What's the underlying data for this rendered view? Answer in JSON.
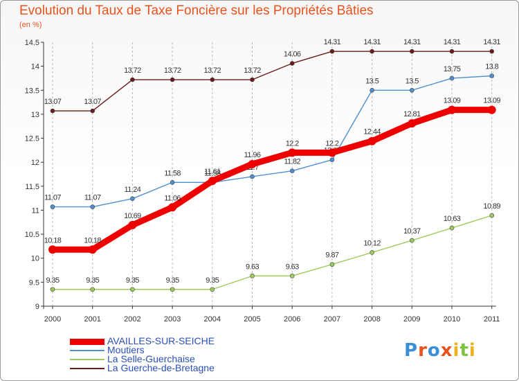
{
  "title": "Evolution du Taux de Taxe Foncière sur les Propriétés Bâties",
  "unit_label": "(en %)",
  "logo": "Proxiti",
  "chart_data": {
    "type": "line",
    "x": [
      "2000",
      "2001",
      "2002",
      "2003",
      "2004",
      "2005",
      "2006",
      "2007",
      "2008",
      "2009",
      "2010",
      "2011"
    ],
    "ylim": [
      9,
      14.5
    ],
    "yticks": [
      "9",
      "9.5",
      "10",
      "10.5",
      "11",
      "11.5",
      "12",
      "12.5",
      "13",
      "13.5",
      "14",
      "14.5"
    ],
    "grid": "vertical dashed",
    "legend_position": "bottom-left",
    "series": [
      {
        "name": "La Guerche-de-Bretagne",
        "color": "#6b1a1a",
        "width": 1.4,
        "marker": 3,
        "values": [
          13.07,
          13.07,
          13.72,
          13.72,
          13.72,
          13.72,
          14.06,
          14.31,
          14.31,
          14.31,
          14.31,
          14.31
        ],
        "labels": [
          "13.07",
          "13.07",
          "13.72",
          "13.72",
          "13.72",
          "13.72",
          "14.06",
          "14.31",
          "14.31",
          "14.31",
          "14.31",
          "14.31"
        ]
      },
      {
        "name": "Moutiers",
        "color": "#4f8fcf",
        "width": 1.4,
        "marker": 3,
        "values": [
          11.07,
          11.07,
          11.24,
          11.58,
          11.58,
          11.7,
          11.82,
          12.05,
          13.5,
          13.5,
          13.75,
          13.8
        ],
        "labels": [
          "11.07",
          "11.07",
          "11.24",
          "11.58",
          "11.58",
          "11.7",
          "11.82",
          "12.05",
          "13.5",
          "13.5",
          "13.75",
          "13.8"
        ]
      },
      {
        "name": "La Selle-Guerchaise",
        "color": "#9ccd5c",
        "width": 1.4,
        "marker": 3,
        "values": [
          9.35,
          9.35,
          9.35,
          9.35,
          9.35,
          9.63,
          9.63,
          9.87,
          10.12,
          10.37,
          10.63,
          10.89
        ],
        "labels": [
          "9.35",
          "9.35",
          "9.35",
          "9.35",
          "9.35",
          "9.63",
          "9.63",
          "9.87",
          "10.12",
          "10.37",
          "10.63",
          "10.89"
        ]
      },
      {
        "name": "AVAILLES-SUR-SEICHE",
        "color": "#ee0000",
        "width": 9,
        "marker": 6,
        "values": [
          10.18,
          10.18,
          10.69,
          11.06,
          11.61,
          11.96,
          12.2,
          12.2,
          12.44,
          12.81,
          13.09,
          13.09
        ],
        "labels": [
          "10.18",
          "10.18",
          "10.69",
          "11.06",
          "11.61",
          "11.96",
          "12.2",
          "12.2",
          "12.44",
          "12.81",
          "13.09",
          "13.09"
        ]
      }
    ],
    "legend": [
      {
        "name": "AVAILLES-SUR-SEICHE",
        "color": "#ee0000",
        "width": 9
      },
      {
        "name": "Moutiers",
        "color": "#4f8fcf",
        "width": 1.5
      },
      {
        "name": "La Selle-Guerchaise",
        "color": "#9ccd5c",
        "width": 1.5
      },
      {
        "name": "La Guerche-de-Bretagne",
        "color": "#6b1a1a",
        "width": 1.5
      }
    ]
  }
}
